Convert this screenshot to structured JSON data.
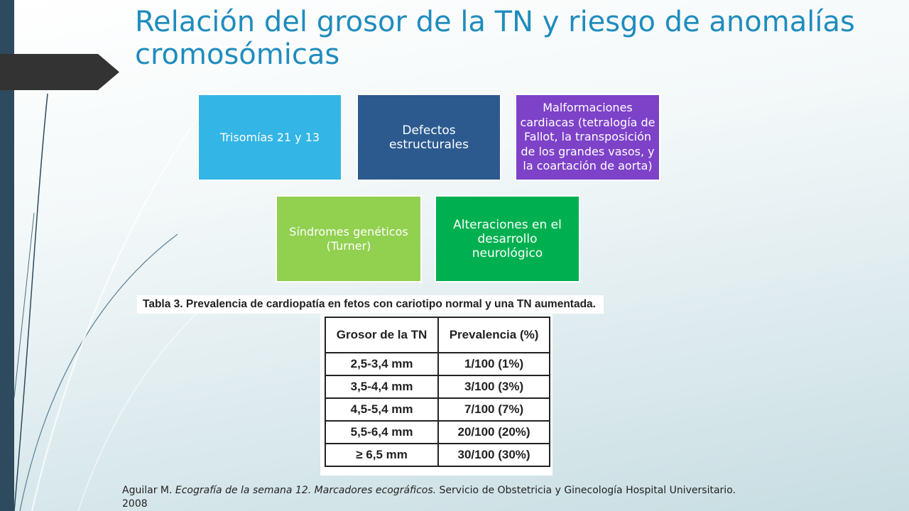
{
  "slide": {
    "title": "Relación del grosor de la TN y riesgo de anomalías cromosómicas",
    "boxes": [
      {
        "label": "Trisomías 21 y 13",
        "color": "#33b5e5"
      },
      {
        "label": "Defectos estructurales",
        "color": "#2c5a8f"
      },
      {
        "label": "Malformaciones cardiacas (tetralogía de Fallot, la transposición de los grandes vasos, y la coartación de aorta)",
        "color": "#7d42c8"
      },
      {
        "label": "Síndromes genéticos (Turner)",
        "color": "#92d050"
      },
      {
        "label": "Alteraciones en el desarrollo neurológico",
        "color": "#00b050"
      }
    ],
    "table": {
      "caption": "Tabla 3. Prevalencia de cardiopatía en fetos con cariotipo normal y una TN aumentada.",
      "headers": [
        "Grosor de la TN",
        "Prevalencia (%)"
      ],
      "rows": [
        [
          "2,5-3,4 mm",
          "1/100 (1%)"
        ],
        [
          "3,5-4,4 mm",
          "3/100 (3%)"
        ],
        [
          "4,5-5,4 mm",
          "7/100 (7%)"
        ],
        [
          "5,5-6,4 mm",
          "20/100 (20%)"
        ],
        [
          "≥ 6,5 mm",
          "30/100 (30%)"
        ]
      ]
    },
    "footer": {
      "author": "Aguilar M. ",
      "italic": "Ecografía de la semana 12. Marcadores ecográficos.",
      "rest": " Servicio de Obstetricia y Ginecología Hospital Universitario. 2008"
    },
    "colors": {
      "title": "#1f8cbd",
      "left_bar": "#2e4a5e",
      "arrow_tab": "#333333"
    }
  }
}
